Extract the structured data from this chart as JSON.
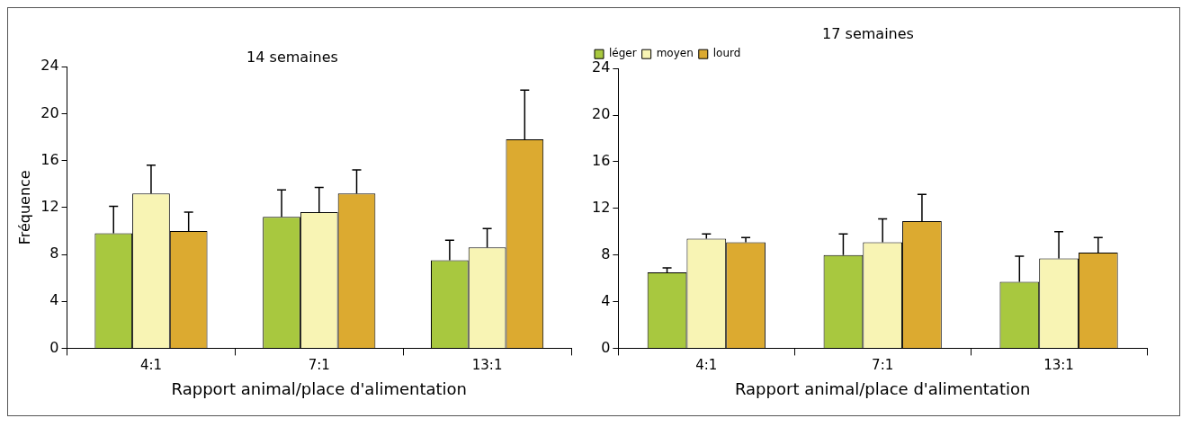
{
  "chart_data": [
    {
      "type": "bar",
      "title": "14 semaines",
      "xlabel": "Rapport animal/place d'alimentation",
      "ylabel": "Fréquence",
      "categories": [
        "4:1",
        "7:1",
        "13:1"
      ],
      "series": [
        {
          "color": "#a8c83f",
          "values": [
            9.8,
            11.2,
            7.5
          ],
          "errors": [
            [
              9.8,
              12.1
            ],
            [
              11.2,
              13.5
            ],
            [
              7.5,
              9.2
            ]
          ]
        },
        {
          "color": "#f8f4b4",
          "values": [
            13.2,
            11.6,
            8.6
          ],
          "errors": [
            [
              13.2,
              15.6
            ],
            [
              11.6,
              13.7
            ],
            [
              8.6,
              10.2
            ]
          ]
        },
        {
          "color": "#dcaa30",
          "values": [
            10.0,
            13.2,
            17.8
          ],
          "errors": [
            [
              10.0,
              11.6
            ],
            [
              13.2,
              15.2
            ],
            [
              17.8,
              22.0
            ]
          ]
        }
      ],
      "ylim": [
        0,
        24
      ],
      "yticks": [
        0,
        4,
        8,
        12,
        16,
        20,
        24
      ],
      "grid": false,
      "legend": false
    },
    {
      "type": "bar",
      "title": "17 semaines",
      "xlabel": "Rapport animal/place d'alimentation",
      "categories": [
        "4:1",
        "7:1",
        "13:1"
      ],
      "series": [
        {
          "name": "léger",
          "color": "#a8c83f",
          "values": [
            6.5,
            8.0,
            5.7
          ],
          "errors": [
            [
              6.5,
              6.9
            ],
            [
              8.0,
              9.8
            ],
            [
              5.7,
              7.9
            ]
          ]
        },
        {
          "name": "moyen",
          "color": "#f8f4b4",
          "values": [
            9.4,
            9.1,
            7.7
          ],
          "errors": [
            [
              9.4,
              9.8
            ],
            [
              9.1,
              11.1
            ],
            [
              7.7,
              10.0
            ]
          ]
        },
        {
          "name": "lourd",
          "color": "#dcaa30",
          "values": [
            9.1,
            10.9,
            8.2
          ],
          "errors": [
            [
              9.1,
              9.5
            ],
            [
              10.9,
              13.2
            ],
            [
              8.2,
              9.5
            ]
          ]
        }
      ],
      "ylim": [
        0,
        24
      ],
      "yticks": [
        0,
        4,
        8,
        12,
        16,
        20,
        24
      ],
      "grid": false,
      "legend": "top left"
    }
  ]
}
